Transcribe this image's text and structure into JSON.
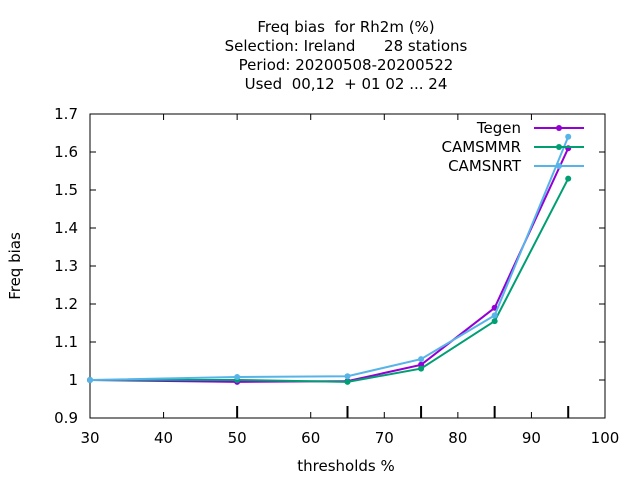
{
  "chart_data": {
    "type": "line",
    "title_lines": [
      "Freq bias  for Rh2m (%)",
      "Selection: Ireland      28 stations",
      "Period: 20200508-20200522",
      "Used  00,12  + 01 02 ... 24"
    ],
    "xlabel": "thresholds %",
    "ylabel": "Freq bias",
    "xlim": [
      30,
      100
    ],
    "ylim": [
      0.9,
      1.7
    ],
    "xticks": [
      "30",
      "40",
      "50",
      "60",
      "70",
      "80",
      "90",
      "100"
    ],
    "yticks": [
      "0.9",
      "1",
      "1.1",
      "1.2",
      "1.3",
      "1.4",
      "1.5",
      "1.6",
      "1.7"
    ],
    "grid": false,
    "legend_position": "top-right",
    "series": [
      {
        "name": "Tegen",
        "color": "#9400d3",
        "x": [
          30,
          50,
          65,
          75,
          85,
          95
        ],
        "y": [
          1.0,
          0.995,
          0.997,
          1.04,
          1.19,
          1.61
        ]
      },
      {
        "name": "CAMSMMR",
        "color": "#009e73",
        "x": [
          30,
          50,
          65,
          75,
          85,
          95
        ],
        "y": [
          1.0,
          1.0,
          0.995,
          1.03,
          1.155,
          1.53
        ]
      },
      {
        "name": "CAMSNRT",
        "color": "#56b4e9",
        "x": [
          30,
          50,
          65,
          75,
          85,
          95
        ],
        "y": [
          1.0,
          1.008,
          1.01,
          1.055,
          1.17,
          1.64
        ]
      }
    ]
  }
}
